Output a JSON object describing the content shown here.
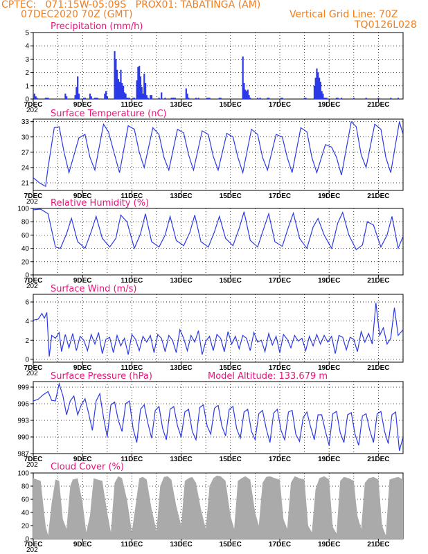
{
  "header": {
    "line1": "CPTEC:   071:15W-05:09S   PROX01: TABATINGA (AM)",
    "line2": "07DEC2020 70Z (GMT)",
    "vgrid": "Vertical Grid Line: 70Z",
    "code": "TQ0126L028"
  },
  "x_labels": [
    "7DEC",
    "9DEC",
    "11DEC",
    "13DEC",
    "15DEC",
    "17DEC",
    "19DEC",
    "21DEC"
  ],
  "x_axis_start_text": "202",
  "colors": {
    "line": "#2b39e6",
    "bars": "#2b39e6",
    "cloud": "#aaaaaa",
    "title": "#e8137a",
    "header": "#f27d1e"
  },
  "chart_data": [
    {
      "type": "bar",
      "title": "Precipitation (mm/h)",
      "ylim": [
        0,
        5
      ],
      "yticks": [
        "0",
        "1",
        "2",
        "3",
        "4",
        "5"
      ],
      "x_range_days": [
        0,
        15
      ],
      "x": [
        0.05,
        0.1,
        0.15,
        0.5,
        0.55,
        0.6,
        1.3,
        1.35,
        1.7,
        1.75,
        1.8,
        1.85,
        2.05,
        2.1,
        2.3,
        2.35,
        2.5,
        2.55,
        2.6,
        2.9,
        2.95,
        3.0,
        3.3,
        3.35,
        3.4,
        3.45,
        3.5,
        3.55,
        3.6,
        3.65,
        3.7,
        3.75,
        3.8,
        3.85,
        3.9,
        4.05,
        4.1,
        4.2,
        4.25,
        4.3,
        4.35,
        4.4,
        4.45,
        4.5,
        4.55,
        4.6,
        4.65,
        4.75,
        4.8,
        5.1,
        5.2,
        5.35,
        5.6,
        5.65,
        5.7,
        5.75,
        6.2,
        6.25,
        6.3,
        6.6,
        6.7,
        7.05,
        7.1,
        7.15,
        7.55,
        7.6,
        8.5,
        8.55,
        8.6,
        8.65,
        8.7,
        8.75,
        8.8,
        9.1,
        9.2,
        9.5,
        9.55,
        10.05,
        10.1,
        11.0,
        11.05,
        11.4,
        11.45,
        11.5,
        11.55,
        11.6,
        11.65,
        11.7,
        11.75,
        11.8,
        11.85,
        11.9,
        12.3,
        12.35,
        12.5,
        13.0,
        13.5,
        14.0,
        14.5,
        14.8
      ],
      "values": [
        0.4,
        0.2,
        0.1,
        0.1,
        0.1,
        0.1,
        0.4,
        0.2,
        0.3,
        0.9,
        1.7,
        0.4,
        0.1,
        0.1,
        0.4,
        0.2,
        0.1,
        0.1,
        0.1,
        0.4,
        0.6,
        0.2,
        3.6,
        3.0,
        2.2,
        1.5,
        1.3,
        2.2,
        1.2,
        1.0,
        0.5,
        0.4,
        0.1,
        0.1,
        0.1,
        0.1,
        0.1,
        1.4,
        2.4,
        2.5,
        1.7,
        0.9,
        0.4,
        1.9,
        1.2,
        0.3,
        0.1,
        0.3,
        0.3,
        0.1,
        0.5,
        0.1,
        0.1,
        0.1,
        0.1,
        0.1,
        0.8,
        0.4,
        0.1,
        0.1,
        0.1,
        0.1,
        0.1,
        0.1,
        0.1,
        0.1,
        3.2,
        1.2,
        0.7,
        0.6,
        0.7,
        0.3,
        0.1,
        0.1,
        0.1,
        0.1,
        0.1,
        0.1,
        0.1,
        0.1,
        0.1,
        1.0,
        1.6,
        2.3,
        2.0,
        1.6,
        1.3,
        0.6,
        0.4,
        0.1,
        0.1,
        0.1,
        0.1,
        0.1,
        0.1,
        0.1,
        0.1,
        0.1,
        0.1,
        0.1
      ]
    },
    {
      "type": "line",
      "title": "Surface Temperature (nC)",
      "ylim": [
        19.5,
        33.5
      ],
      "yticks": [
        "21",
        "24",
        "27",
        "30",
        "33"
      ],
      "x_range_days": [
        0,
        15
      ],
      "x": [
        0,
        0.25,
        0.5,
        0.6,
        0.85,
        1.05,
        1.25,
        1.45,
        1.85,
        2.1,
        2.3,
        2.5,
        2.85,
        3.05,
        3.3,
        3.5,
        3.85,
        4.1,
        4.3,
        4.5,
        4.85,
        5.1,
        5.3,
        5.5,
        5.85,
        6.1,
        6.3,
        6.5,
        6.85,
        7.1,
        7.3,
        7.5,
        7.85,
        8.1,
        8.3,
        8.5,
        8.85,
        9.1,
        9.3,
        9.5,
        9.85,
        10.1,
        10.3,
        10.5,
        10.85,
        11.1,
        11.3,
        11.5,
        11.85,
        12.1,
        12.3,
        12.5,
        12.9,
        13.1,
        13.3,
        13.5,
        13.85,
        14.1,
        14.3,
        14.5,
        14.85,
        15.0
      ],
      "values": [
        22,
        21,
        20.3,
        24,
        31.8,
        32,
        27,
        23,
        29.8,
        30.5,
        26,
        23.5,
        32.5,
        31,
        26.5,
        23,
        32.2,
        31.5,
        27,
        24,
        31.8,
        30.5,
        26,
        23.5,
        31.5,
        30.8,
        26.5,
        23.5,
        31.2,
        30.5,
        26.2,
        23.5,
        30.7,
        30,
        26,
        23,
        31.5,
        30.5,
        26,
        23.5,
        30.5,
        30,
        26,
        23,
        31.8,
        31,
        26,
        23,
        28.5,
        28,
        26,
        22.5,
        33,
        32,
        26.5,
        24,
        32.5,
        31.5,
        26,
        23,
        33,
        30.5
      ]
    },
    {
      "type": "line",
      "title": "Relative Humidity (%)",
      "ylim": [
        0,
        100
      ],
      "yticks": [
        "0",
        "20",
        "40",
        "60",
        "80",
        "100"
      ],
      "x_range_days": [
        0,
        15
      ],
      "x": [
        0,
        0.3,
        0.6,
        0.9,
        1.1,
        1.35,
        1.55,
        1.8,
        2.1,
        2.35,
        2.55,
        2.8,
        3.1,
        3.35,
        3.55,
        3.8,
        4.1,
        4.35,
        4.55,
        4.8,
        5.1,
        5.35,
        5.55,
        5.8,
        6.1,
        6.35,
        6.55,
        6.8,
        7.1,
        7.35,
        7.55,
        7.8,
        8.1,
        8.35,
        8.55,
        8.8,
        9.1,
        9.35,
        9.55,
        9.8,
        10.1,
        10.35,
        10.55,
        10.8,
        11.1,
        11.35,
        11.55,
        11.8,
        12.1,
        12.35,
        12.55,
        12.8,
        13.1,
        13.35,
        13.55,
        13.8,
        14.1,
        14.35,
        14.55,
        14.8,
        15.0
      ],
      "values": [
        98,
        99,
        92,
        42,
        40,
        62,
        85,
        50,
        40,
        65,
        88,
        55,
        42,
        55,
        90,
        80,
        40,
        62,
        92,
        50,
        42,
        60,
        88,
        52,
        44,
        64,
        90,
        50,
        42,
        65,
        88,
        55,
        44,
        70,
        95,
        52,
        42,
        70,
        92,
        50,
        43,
        72,
        93,
        55,
        40,
        72,
        85,
        60,
        40,
        78,
        94,
        60,
        38,
        45,
        80,
        75,
        42,
        60,
        88,
        40,
        58
      ]
    },
    {
      "type": "line",
      "title": "Surface Wind (m/s)",
      "ylim": [
        -0.3,
        6.8
      ],
      "yticks": [
        "0",
        "2",
        "4",
        "6"
      ],
      "x_range_days": [
        0,
        15
      ],
      "x": [
        0,
        0.2,
        0.35,
        0.45,
        0.55,
        0.65,
        0.75,
        0.9,
        1.05,
        1.15,
        1.3,
        1.45,
        1.6,
        1.75,
        1.9,
        2.05,
        2.2,
        2.35,
        2.5,
        2.65,
        2.8,
        2.95,
        3.1,
        3.25,
        3.4,
        3.55,
        3.7,
        3.85,
        4.0,
        4.15,
        4.3,
        4.45,
        4.6,
        4.75,
        4.9,
        5.05,
        5.2,
        5.35,
        5.5,
        5.65,
        5.8,
        5.95,
        6.1,
        6.25,
        6.4,
        6.55,
        6.7,
        6.85,
        7.0,
        7.15,
        7.3,
        7.45,
        7.6,
        7.75,
        7.9,
        8.05,
        8.2,
        8.35,
        8.5,
        8.65,
        8.8,
        8.95,
        9.1,
        9.25,
        9.4,
        9.55,
        9.7,
        9.85,
        10.0,
        10.15,
        10.3,
        10.45,
        10.6,
        10.75,
        10.9,
        11.05,
        11.2,
        11.35,
        11.5,
        11.65,
        11.8,
        11.95,
        12.1,
        12.25,
        12.4,
        12.55,
        12.7,
        12.85,
        13.0,
        13.15,
        13.3,
        13.45,
        13.6,
        13.75,
        13.9,
        14.05,
        14.2,
        14.35,
        14.5,
        14.65,
        14.8,
        15.0
      ],
      "values": [
        4.1,
        4.2,
        4.8,
        4.3,
        4.9,
        0.3,
        2.5,
        2.2,
        2.8,
        0.8,
        2.6,
        1.2,
        2.7,
        0.9,
        2.4,
        2.0,
        0.9,
        2.6,
        1.6,
        2.8,
        0.6,
        2.1,
        2.3,
        0.7,
        2.5,
        1.4,
        2.2,
        0.5,
        2.6,
        2.1,
        0.9,
        2.4,
        1.8,
        2.5,
        0.7,
        2.6,
        2.2,
        0.8,
        2.5,
        2.0,
        0.7,
        3.1,
        2.2,
        0.9,
        2.5,
        1.8,
        3.0,
        0.5,
        1.9,
        2.4,
        0.9,
        2.6,
        2.2,
        0.8,
        2.9,
        1.6,
        2.4,
        1.1,
        2.5,
        2.2,
        0.9,
        2.8,
        1.8,
        2.0,
        0.8,
        2.7,
        1.5,
        2.4,
        0.7,
        2.6,
        2.1,
        1.2,
        2.5,
        1.9,
        2.2,
        0.9,
        2.4,
        1.4,
        2.6,
        1.6,
        2.5,
        1.8,
        2.4,
        0.6,
        2.5,
        2.3,
        1.0,
        2.3,
        2.1,
        0.8,
        2.9,
        1.8,
        2.7,
        1.6,
        5.9,
        2.5,
        3.3,
        1.6,
        2.2,
        5.4,
        2.5,
        3.1
      ]
    },
    {
      "type": "line",
      "title": "Surface Pressure (hPa)",
      "annotation": "Model Altitude: 133.679  m",
      "ylim": [
        987,
        1000
      ],
      "yticks": [
        "987",
        "990",
        "993",
        "996",
        "999"
      ],
      "x_range_days": [
        0,
        15
      ],
      "x": [
        0,
        0.2,
        0.4,
        0.6,
        0.75,
        0.9,
        1.05,
        1.2,
        1.35,
        1.5,
        1.65,
        1.8,
        1.95,
        2.1,
        2.25,
        2.4,
        2.55,
        2.7,
        2.85,
        3.0,
        3.15,
        3.3,
        3.45,
        3.6,
        3.75,
        3.9,
        4.05,
        4.2,
        4.35,
        4.5,
        4.65,
        4.8,
        4.95,
        5.1,
        5.25,
        5.4,
        5.55,
        5.7,
        5.85,
        6.0,
        6.15,
        6.3,
        6.45,
        6.6,
        6.75,
        6.9,
        7.05,
        7.2,
        7.35,
        7.5,
        7.65,
        7.8,
        7.95,
        8.1,
        8.25,
        8.4,
        8.55,
        8.7,
        8.85,
        9.0,
        9.15,
        9.3,
        9.45,
        9.6,
        9.75,
        9.9,
        10.05,
        10.2,
        10.35,
        10.5,
        10.65,
        10.8,
        10.95,
        11.1,
        11.25,
        11.4,
        11.55,
        11.7,
        11.85,
        12.0,
        12.15,
        12.3,
        12.45,
        12.6,
        12.75,
        12.9,
        13.05,
        13.2,
        13.35,
        13.5,
        13.65,
        13.8,
        13.95,
        14.1,
        14.25,
        14.4,
        14.55,
        14.7,
        14.85,
        15.0
      ],
      "values": [
        996.5,
        996.8,
        997.6,
        998.2,
        996.6,
        996.5,
        999.6,
        997.5,
        994.0,
        996.5,
        997.4,
        994.0,
        995.8,
        996.9,
        994.2,
        991.2,
        996.5,
        997.8,
        993.5,
        990.0,
        995.8,
        996.3,
        993.0,
        991.0,
        996.0,
        996.5,
        991.5,
        989.0,
        995.0,
        995.8,
        992.5,
        989.8,
        994.8,
        995.5,
        991.5,
        989.5,
        995.0,
        995.5,
        992.0,
        990.0,
        994.5,
        995.0,
        991.0,
        989.5,
        995.3,
        995.8,
        992.0,
        990.5,
        995.2,
        995.7,
        992.0,
        990.2,
        995.0,
        995.5,
        991.5,
        989.8,
        994.5,
        995.0,
        991.0,
        989.5,
        994.2,
        994.8,
        991.5,
        989.0,
        994.3,
        995.0,
        991.2,
        989.5,
        994.5,
        994.8,
        990.5,
        989.2,
        993.5,
        994.5,
        991.8,
        989.5,
        994.0,
        994.0,
        991.0,
        988.5,
        994.2,
        994.6,
        990.8,
        989.0,
        994.0,
        994.4,
        990.5,
        988.5,
        993.8,
        994.2,
        991.2,
        989.0,
        994.2,
        994.6,
        991.0,
        988.8,
        994.0,
        994.5,
        987.5,
        990.0
      ]
    },
    {
      "type": "area",
      "title": "Cloud Cover (%)",
      "ylim": [
        0,
        100
      ],
      "yticks": [
        "0",
        "20",
        "40",
        "60",
        "80",
        "100"
      ],
      "x_range_days": [
        0,
        15
      ],
      "x": [
        0,
        0.15,
        0.3,
        0.5,
        0.6,
        0.75,
        0.9,
        1.05,
        1.2,
        1.35,
        1.5,
        1.6,
        1.8,
        2.0,
        2.15,
        2.3,
        2.45,
        2.6,
        2.8,
        3.0,
        3.15,
        3.3,
        3.45,
        3.6,
        3.8,
        4.0,
        4.15,
        4.3,
        4.45,
        4.6,
        4.8,
        5.0,
        5.15,
        5.3,
        5.45,
        5.6,
        5.8,
        6.0,
        6.15,
        6.3,
        6.45,
        6.6,
        6.8,
        7.0,
        7.15,
        7.3,
        7.45,
        7.6,
        7.8,
        8.0,
        8.15,
        8.3,
        8.45,
        8.6,
        8.8,
        9.0,
        9.15,
        9.3,
        9.45,
        9.6,
        9.8,
        10.0,
        10.15,
        10.3,
        10.45,
        10.6,
        10.8,
        11.0,
        11.15,
        11.3,
        11.45,
        11.6,
        11.8,
        12.0,
        12.15,
        12.3,
        12.45,
        12.6,
        12.8,
        13.0,
        13.15,
        13.3,
        13.45,
        13.6,
        13.8,
        14.0,
        14.15,
        14.3,
        14.45,
        14.6,
        14.8,
        15.0
      ],
      "values": [
        92,
        90,
        88,
        20,
        5,
        55,
        90,
        88,
        30,
        15,
        80,
        90,
        92,
        55,
        10,
        35,
        92,
        90,
        88,
        40,
        10,
        85,
        95,
        92,
        60,
        10,
        50,
        92,
        94,
        90,
        45,
        12,
        80,
        94,
        95,
        90,
        50,
        20,
        88,
        92,
        94,
        85,
        45,
        15,
        80,
        92,
        96,
        95,
        88,
        35,
        15,
        88,
        92,
        95,
        90,
        40,
        20,
        85,
        94,
        95,
        92,
        90,
        30,
        15,
        85,
        95,
        92,
        90,
        20,
        10,
        75,
        92,
        95,
        90,
        18,
        8,
        88,
        94,
        92,
        88,
        35,
        15,
        85,
        92,
        94,
        90,
        20,
        5,
        90,
        92,
        94,
        90
      ]
    }
  ]
}
